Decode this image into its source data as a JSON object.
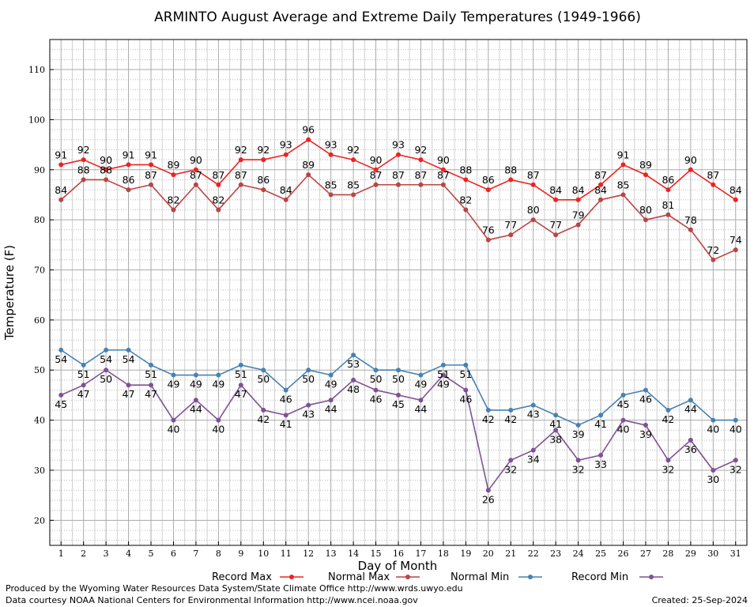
{
  "chart_data": {
    "type": "line",
    "title": "ARMINTO August Average and Extreme Daily Temperatures (1949-1966)",
    "xlabel": "Day of Month",
    "ylabel": "Temperature (F)",
    "xlim": [
      0.5,
      31.5
    ],
    "ylim": [
      15,
      116
    ],
    "yticks": [
      20,
      30,
      40,
      50,
      60,
      70,
      80,
      90,
      100,
      110
    ],
    "categories": [
      1,
      2,
      3,
      4,
      5,
      6,
      7,
      8,
      9,
      10,
      11,
      12,
      13,
      14,
      15,
      16,
      17,
      18,
      19,
      20,
      21,
      22,
      23,
      24,
      25,
      26,
      27,
      28,
      29,
      30,
      31
    ],
    "grid": true,
    "legend_position": "bottom",
    "series": [
      {
        "name": "Record Max",
        "color": "#ee2222",
        "values": [
          91,
          92,
          90,
          91,
          91,
          89,
          90,
          87,
          92,
          92,
          93,
          96,
          93,
          92,
          90,
          93,
          92,
          90,
          88,
          86,
          88,
          87,
          84,
          84,
          87,
          91,
          89,
          86,
          90,
          87,
          84
        ]
      },
      {
        "name": "Normal Max",
        "color": "#bb4444",
        "values": [
          84,
          88,
          88,
          86,
          87,
          82,
          87,
          82,
          87,
          86,
          84,
          89,
          85,
          85,
          87,
          87,
          87,
          87,
          82,
          76,
          77,
          80,
          77,
          79,
          84,
          85,
          80,
          81,
          78,
          72,
          74
        ]
      },
      {
        "name": "Normal Min",
        "color": "#4682b4",
        "values": [
          54,
          51,
          54,
          54,
          51,
          49,
          49,
          49,
          51,
          50,
          46,
          50,
          49,
          53,
          50,
          50,
          49,
          51,
          51,
          42,
          42,
          43,
          41,
          39,
          41,
          45,
          46,
          42,
          44,
          40,
          40
        ]
      },
      {
        "name": "Record Min",
        "color": "#7f5195",
        "values": [
          45,
          47,
          50,
          47,
          47,
          40,
          44,
          40,
          47,
          42,
          41,
          43,
          44,
          48,
          46,
          45,
          44,
          49,
          46,
          26,
          32,
          34,
          38,
          32,
          33,
          40,
          39,
          32,
          36,
          30,
          32
        ]
      }
    ]
  },
  "footer": {
    "line1": "Produced by the Wyoming Water Resources Data System/State Climate Office http://www.wrds.uwyo.edu",
    "line2": "Data courtesy NOAA National Centers for Environmental Information http://www.ncei.noaa.gov",
    "created": "Created: 25-Sep-2024"
  }
}
